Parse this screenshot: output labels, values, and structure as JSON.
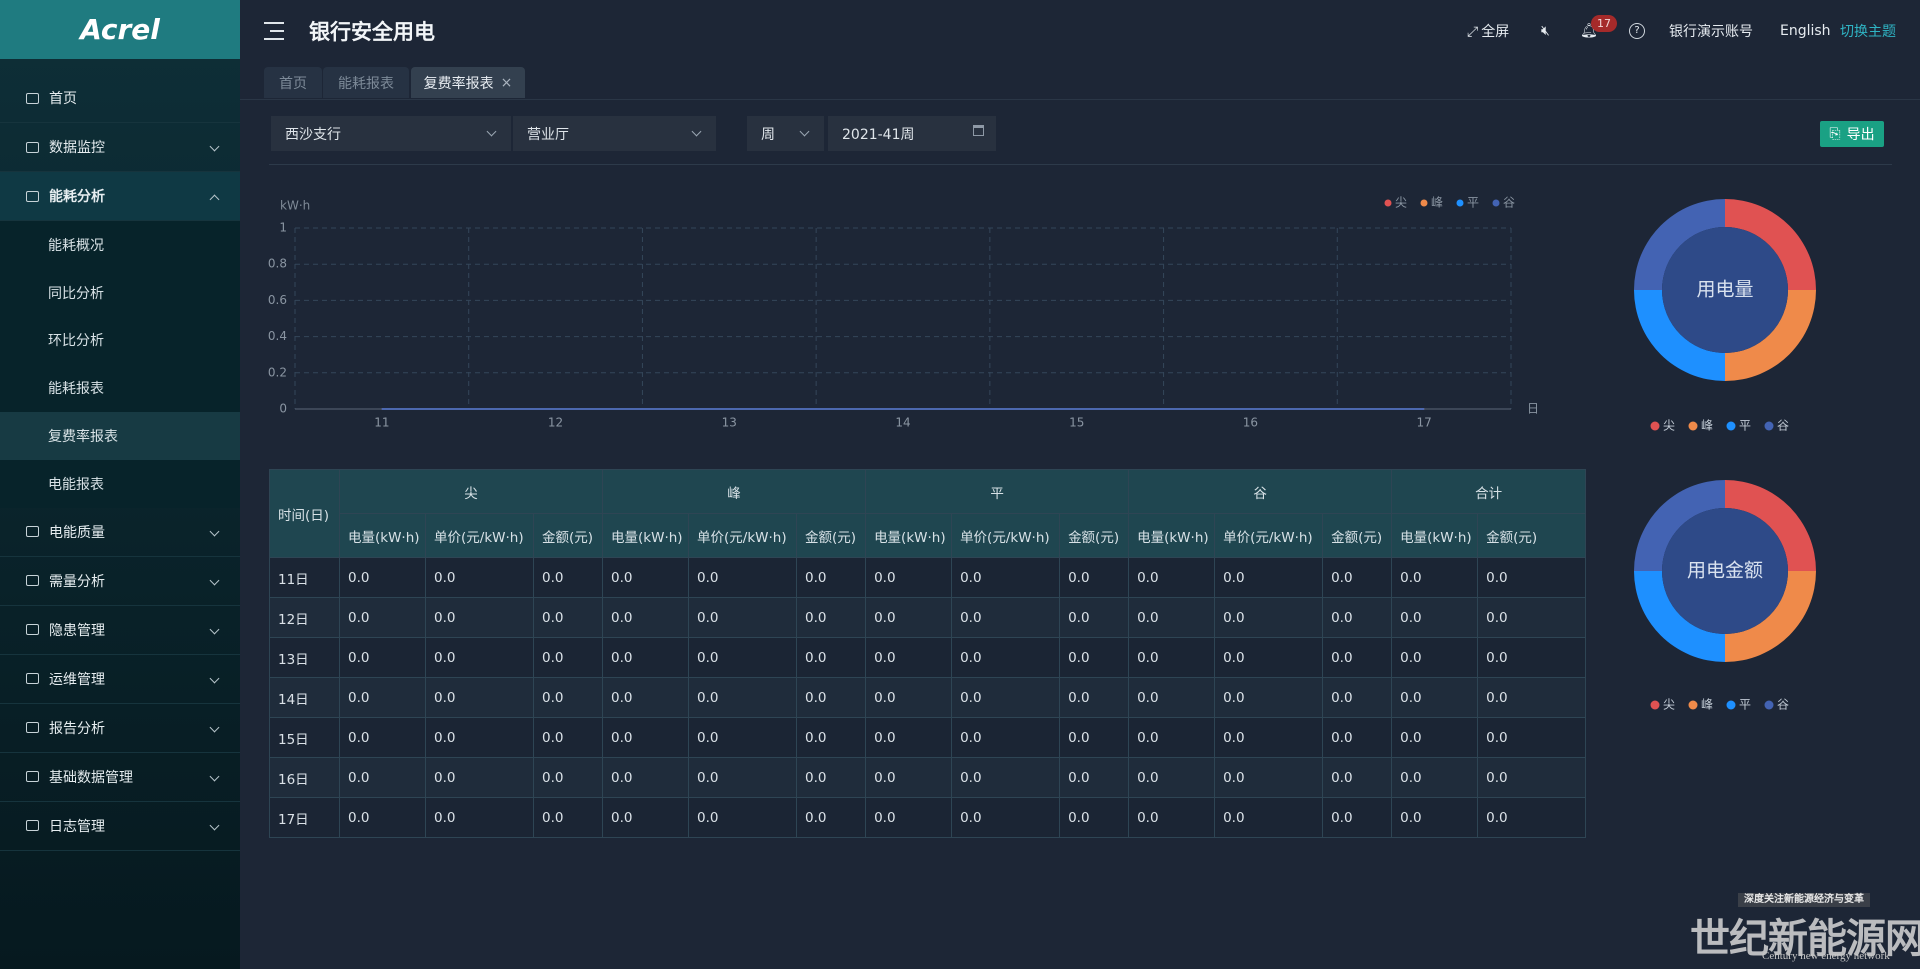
{
  "sidebar": {
    "logo": "Acrel",
    "menu": [
      {
        "label": "首页"
      },
      {
        "label": "数据监控"
      },
      {
        "label": "能耗分析",
        "children": [
          "能耗概况",
          "同比分析",
          "环比分析",
          "能耗报表",
          "复费率报表",
          "电能报表"
        ]
      },
      {
        "label": "电能质量"
      },
      {
        "label": "需量分析"
      },
      {
        "label": "隐患管理"
      },
      {
        "label": "运维管理"
      },
      {
        "label": "报告分析"
      },
      {
        "label": "基础数据管理"
      },
      {
        "label": "日志管理"
      }
    ]
  },
  "header": {
    "title": "银行安全用电",
    "fullscreen": "全屏",
    "notifications": 17,
    "account": "银行演示账号",
    "language": "English",
    "theme": "切换主题"
  },
  "tabs": [
    "首页",
    "能耗报表",
    "复费率报表"
  ],
  "filters": {
    "branch": "西沙支行",
    "area": "营业厅",
    "period": "周",
    "date": "2021-41周",
    "export": "导出"
  },
  "chart_data": [
    {
      "type": "line",
      "y_label": "kW·h",
      "x_label": "日",
      "categories": [
        "11",
        "12",
        "13",
        "14",
        "15",
        "16",
        "17"
      ],
      "ylim": [
        0,
        1
      ],
      "yticks": [
        0,
        0.2,
        0.4,
        0.6,
        0.8,
        1
      ],
      "grid": true,
      "legend": "top-right",
      "series": [
        {
          "name": "尖",
          "color": "#e05252",
          "values": [
            0,
            0,
            0,
            0,
            0,
            0,
            0
          ]
        },
        {
          "name": "峰",
          "color": "#ef8a4a",
          "values": [
            0,
            0,
            0,
            0,
            0,
            0,
            0
          ]
        },
        {
          "name": "平",
          "color": "#1e90ff",
          "values": [
            0,
            0,
            0,
            0,
            0,
            0,
            0
          ]
        },
        {
          "name": "谷",
          "color": "#4363b3",
          "values": [
            0,
            0,
            0,
            0,
            0,
            0,
            0
          ]
        }
      ]
    },
    {
      "type": "pie",
      "center_label": "用电量",
      "categories": [
        "尖",
        "峰",
        "平",
        "谷"
      ],
      "colors": [
        "#e05252",
        "#ef8a4a",
        "#1e90ff",
        "#4363b3"
      ],
      "values": [
        25,
        25,
        25,
        25
      ]
    },
    {
      "type": "pie",
      "center_label": "用电金额",
      "categories": [
        "尖",
        "峰",
        "平",
        "谷"
      ],
      "colors": [
        "#e05252",
        "#ef8a4a",
        "#1e90ff",
        "#4363b3"
      ],
      "values": [
        25,
        25,
        25,
        25
      ]
    }
  ],
  "table": {
    "time_header": "时间(日)",
    "groups": [
      "尖",
      "峰",
      "平",
      "谷",
      "合计"
    ],
    "subheaders": [
      "电量(kW·h)",
      "单价(元/kW·h)",
      "金额(元)",
      "电量(kW·h)",
      "单价(元/kW·h)",
      "金额(元)",
      "电量(kW·h)",
      "单价(元/kW·h)",
      "金额(元)",
      "电量(kW·h)",
      "单价(元/kW·h)",
      "金额(元)",
      "电量(kW·h)",
      "金额(元)"
    ],
    "rows": [
      [
        "11日",
        "0.0",
        "0.0",
        "0.0",
        "0.0",
        "0.0",
        "0.0",
        "0.0",
        "0.0",
        "0.0",
        "0.0",
        "0.0",
        "0.0",
        "0.0",
        "0.0"
      ],
      [
        "12日",
        "0.0",
        "0.0",
        "0.0",
        "0.0",
        "0.0",
        "0.0",
        "0.0",
        "0.0",
        "0.0",
        "0.0",
        "0.0",
        "0.0",
        "0.0",
        "0.0"
      ],
      [
        "13日",
        "0.0",
        "0.0",
        "0.0",
        "0.0",
        "0.0",
        "0.0",
        "0.0",
        "0.0",
        "0.0",
        "0.0",
        "0.0",
        "0.0",
        "0.0",
        "0.0"
      ],
      [
        "14日",
        "0.0",
        "0.0",
        "0.0",
        "0.0",
        "0.0",
        "0.0",
        "0.0",
        "0.0",
        "0.0",
        "0.0",
        "0.0",
        "0.0",
        "0.0",
        "0.0"
      ],
      [
        "15日",
        "0.0",
        "0.0",
        "0.0",
        "0.0",
        "0.0",
        "0.0",
        "0.0",
        "0.0",
        "0.0",
        "0.0",
        "0.0",
        "0.0",
        "0.0",
        "0.0"
      ],
      [
        "16日",
        "0.0",
        "0.0",
        "0.0",
        "0.0",
        "0.0",
        "0.0",
        "0.0",
        "0.0",
        "0.0",
        "0.0",
        "0.0",
        "0.0",
        "0.0",
        "0.0"
      ],
      [
        "17日",
        "0.0",
        "0.0",
        "0.0",
        "0.0",
        "0.0",
        "0.0",
        "0.0",
        "0.0",
        "0.0",
        "0.0",
        "0.0",
        "0.0",
        "0.0",
        "0.0"
      ]
    ]
  },
  "watermark": {
    "slogan": "深度关注新能源经济与变革",
    "name": "世纪新能源网",
    "english": "Century new energy network"
  }
}
